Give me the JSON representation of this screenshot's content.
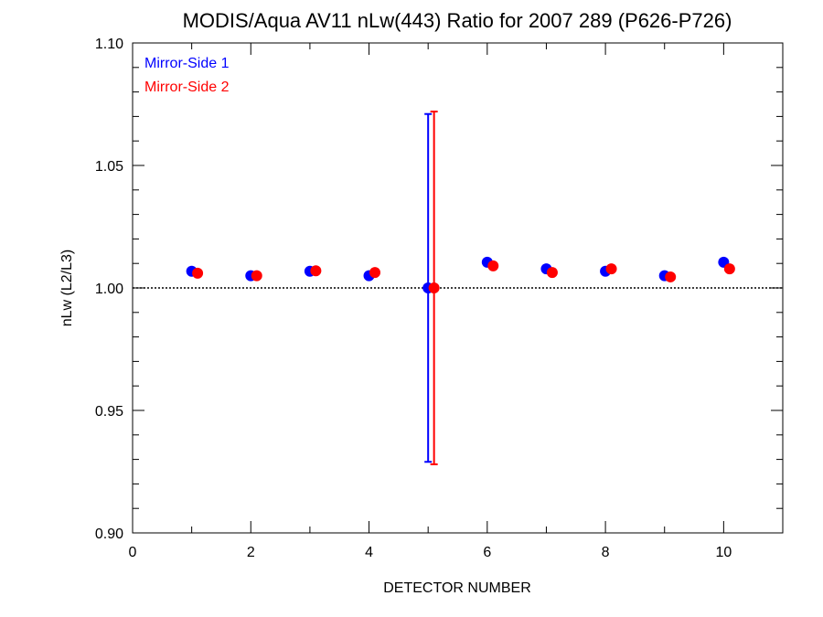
{
  "chart_data": {
    "type": "scatter",
    "title": "MODIS/Aqua AV11 nLw(443) Ratio for 2007 289 (P626-P726)",
    "xlabel": "DETECTOR NUMBER",
    "ylabel": "nLw (L2/L3)",
    "xlim": [
      0,
      11
    ],
    "ylim": [
      0.9,
      1.1
    ],
    "x_ticks": [
      0,
      2,
      4,
      6,
      8,
      10
    ],
    "x_tick_labels": [
      "0",
      "2",
      "4",
      "6",
      "8",
      "10"
    ],
    "y_ticks": [
      0.9,
      0.95,
      1.0,
      1.05,
      1.1
    ],
    "y_tick_labels": [
      "0.90",
      "0.95",
      "1.00",
      "1.05",
      "1.10"
    ],
    "reference_line": 1.0,
    "legend_position": "top-left",
    "series": [
      {
        "name": "Mirror-Side 1",
        "color": "#0000ff",
        "x": [
          1,
          2,
          3,
          4,
          5,
          6,
          7,
          8,
          9,
          10
        ],
        "y": [
          1.0068,
          1.005,
          1.0068,
          1.005,
          1.0,
          1.0105,
          1.0078,
          1.0068,
          1.005,
          1.0105
        ],
        "error_bars": [
          null,
          null,
          null,
          null,
          [
            0.929,
            1.071
          ],
          null,
          null,
          null,
          null,
          null
        ]
      },
      {
        "name": "Mirror-Side 2",
        "color": "#ff0000",
        "x": [
          1.1,
          2.1,
          3.1,
          4.1,
          5.1,
          6.1,
          7.1,
          8.1,
          9.1,
          10.1
        ],
        "y": [
          1.006,
          1.005,
          1.007,
          1.0063,
          1.0,
          1.009,
          1.0063,
          1.0078,
          1.0045,
          1.0078
        ],
        "error_bars": [
          null,
          null,
          null,
          null,
          [
            0.928,
            1.072
          ],
          null,
          null,
          null,
          null,
          null
        ]
      }
    ]
  }
}
